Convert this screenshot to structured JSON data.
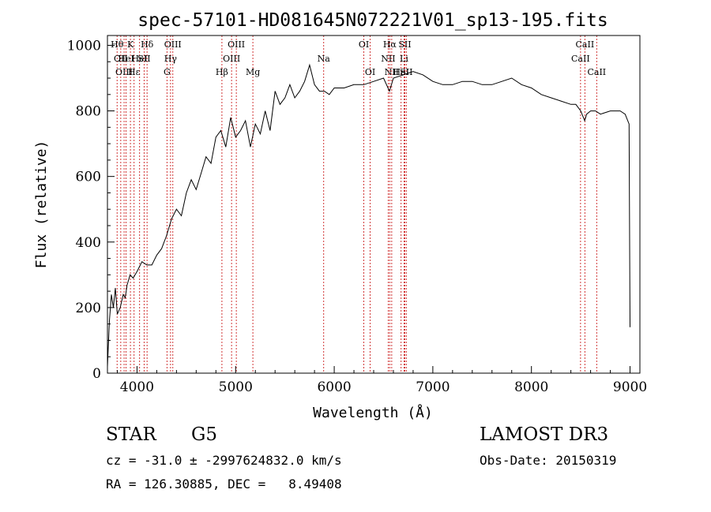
{
  "chart_data": {
    "type": "line",
    "title": "spec-57101-HD081645N072221V01_sp13-195.fits",
    "xlabel": "Wavelength (Å)",
    "ylabel": "Flux (relative)",
    "xlim": [
      3700,
      9100
    ],
    "ylim": [
      0,
      1030
    ],
    "xticks": [
      4000,
      5000,
      6000,
      7000,
      8000,
      9000
    ],
    "yticks": [
      0,
      200,
      400,
      600,
      800,
      1000
    ],
    "grid": false,
    "series": [
      {
        "x": [
          3700,
          3720,
          3740,
          3760,
          3780,
          3800,
          3830,
          3860,
          3880,
          3900,
          3930,
          3960,
          4000,
          4050,
          4100,
          4150,
          4200,
          4250,
          4300,
          4350,
          4400,
          4450,
          4500,
          4550,
          4600,
          4650,
          4700,
          4750,
          4800,
          4850,
          4900,
          4950,
          5000,
          5050,
          5100,
          5150,
          5200,
          5250,
          5300,
          5350,
          5400,
          5450,
          5500,
          5550,
          5600,
          5650,
          5700,
          5750,
          5800,
          5850,
          5900,
          5950,
          6000,
          6100,
          6200,
          6300,
          6400,
          6500,
          6560,
          6600,
          6700,
          6800,
          6900,
          7000,
          7100,
          7200,
          7300,
          7400,
          7500,
          7600,
          7700,
          7800,
          7900,
          8000,
          8100,
          8200,
          8300,
          8400,
          8450,
          8500,
          8540,
          8560,
          8600,
          8650,
          8700,
          8800,
          8900,
          8950,
          8990,
          9000
        ],
        "y": [
          20,
          160,
          240,
          200,
          260,
          180,
          200,
          240,
          230,
          270,
          300,
          290,
          310,
          340,
          330,
          330,
          360,
          380,
          420,
          470,
          500,
          480,
          550,
          590,
          560,
          610,
          660,
          640,
          720,
          740,
          690,
          780,
          720,
          740,
          770,
          690,
          760,
          730,
          800,
          740,
          860,
          820,
          840,
          880,
          840,
          860,
          890,
          940,
          880,
          860,
          860,
          850,
          870,
          870,
          880,
          880,
          890,
          900,
          860,
          900,
          910,
          920,
          910,
          890,
          880,
          880,
          890,
          890,
          880,
          880,
          890,
          900,
          880,
          870,
          850,
          840,
          830,
          820,
          820,
          800,
          770,
          790,
          800,
          800,
          790,
          800,
          800,
          790,
          760,
          140
        ]
      }
    ],
    "lines": [
      {
        "x": 3798,
        "label": "Hθ",
        "row": 1
      },
      {
        "x": 3835,
        "label": "OII",
        "row": 2
      },
      {
        "x": 3869,
        "label": "OIII",
        "row": 3
      },
      {
        "x": 3889,
        "label": "HeI",
        "row": 2
      },
      {
        "x": 3933,
        "label": "K",
        "row": 1
      },
      {
        "x": 3970,
        "label": "Hε",
        "row": 3
      },
      {
        "x": 4026,
        "label": "HeI",
        "row": 2
      },
      {
        "x": 4072,
        "label": "SII",
        "row": 2
      },
      {
        "x": 4102,
        "label": "Hδ",
        "row": 1
      },
      {
        "x": 4304,
        "label": "G",
        "row": 3
      },
      {
        "x": 4340,
        "label": "Hγ",
        "row": 2
      },
      {
        "x": 4363,
        "label": "OIII",
        "row": 1
      },
      {
        "x": 4861,
        "label": "Hβ",
        "row": 3
      },
      {
        "x": 4959,
        "label": "OIII",
        "row": 2
      },
      {
        "x": 5007,
        "label": "OIII",
        "row": 1
      },
      {
        "x": 5175,
        "label": "Mg",
        "row": 3
      },
      {
        "x": 5893,
        "label": "Na",
        "row": 2
      },
      {
        "x": 6300,
        "label": "OI",
        "row": 1
      },
      {
        "x": 6364,
        "label": "OI",
        "row": 3
      },
      {
        "x": 6548,
        "label": "NII",
        "row": 2
      },
      {
        "x": 6563,
        "label": "Hα",
        "row": 1
      },
      {
        "x": 6583,
        "label": "NII",
        "row": 3
      },
      {
        "x": 6678,
        "label": "HeI",
        "row": 3
      },
      {
        "x": 6708,
        "label": "Li",
        "row": 2
      },
      {
        "x": 6716,
        "label": "SII",
        "row": 1
      },
      {
        "x": 6731,
        "label": "SII",
        "row": 3
      },
      {
        "x": 8498,
        "label": "CaII",
        "row": 2
      },
      {
        "x": 8542,
        "label": "CaII",
        "row": 1
      },
      {
        "x": 8662,
        "label": "CaII",
        "row": 3
      }
    ]
  },
  "info": {
    "object_class": "STAR",
    "subclass": "G5",
    "redshift": "cz = -31.0 ± -2997624832.0 km/s",
    "coords": "RA = 126.30885, DEC =   8.49408",
    "survey": "LAMOST DR3",
    "obs_date": "Obs-Date: 20150319"
  }
}
